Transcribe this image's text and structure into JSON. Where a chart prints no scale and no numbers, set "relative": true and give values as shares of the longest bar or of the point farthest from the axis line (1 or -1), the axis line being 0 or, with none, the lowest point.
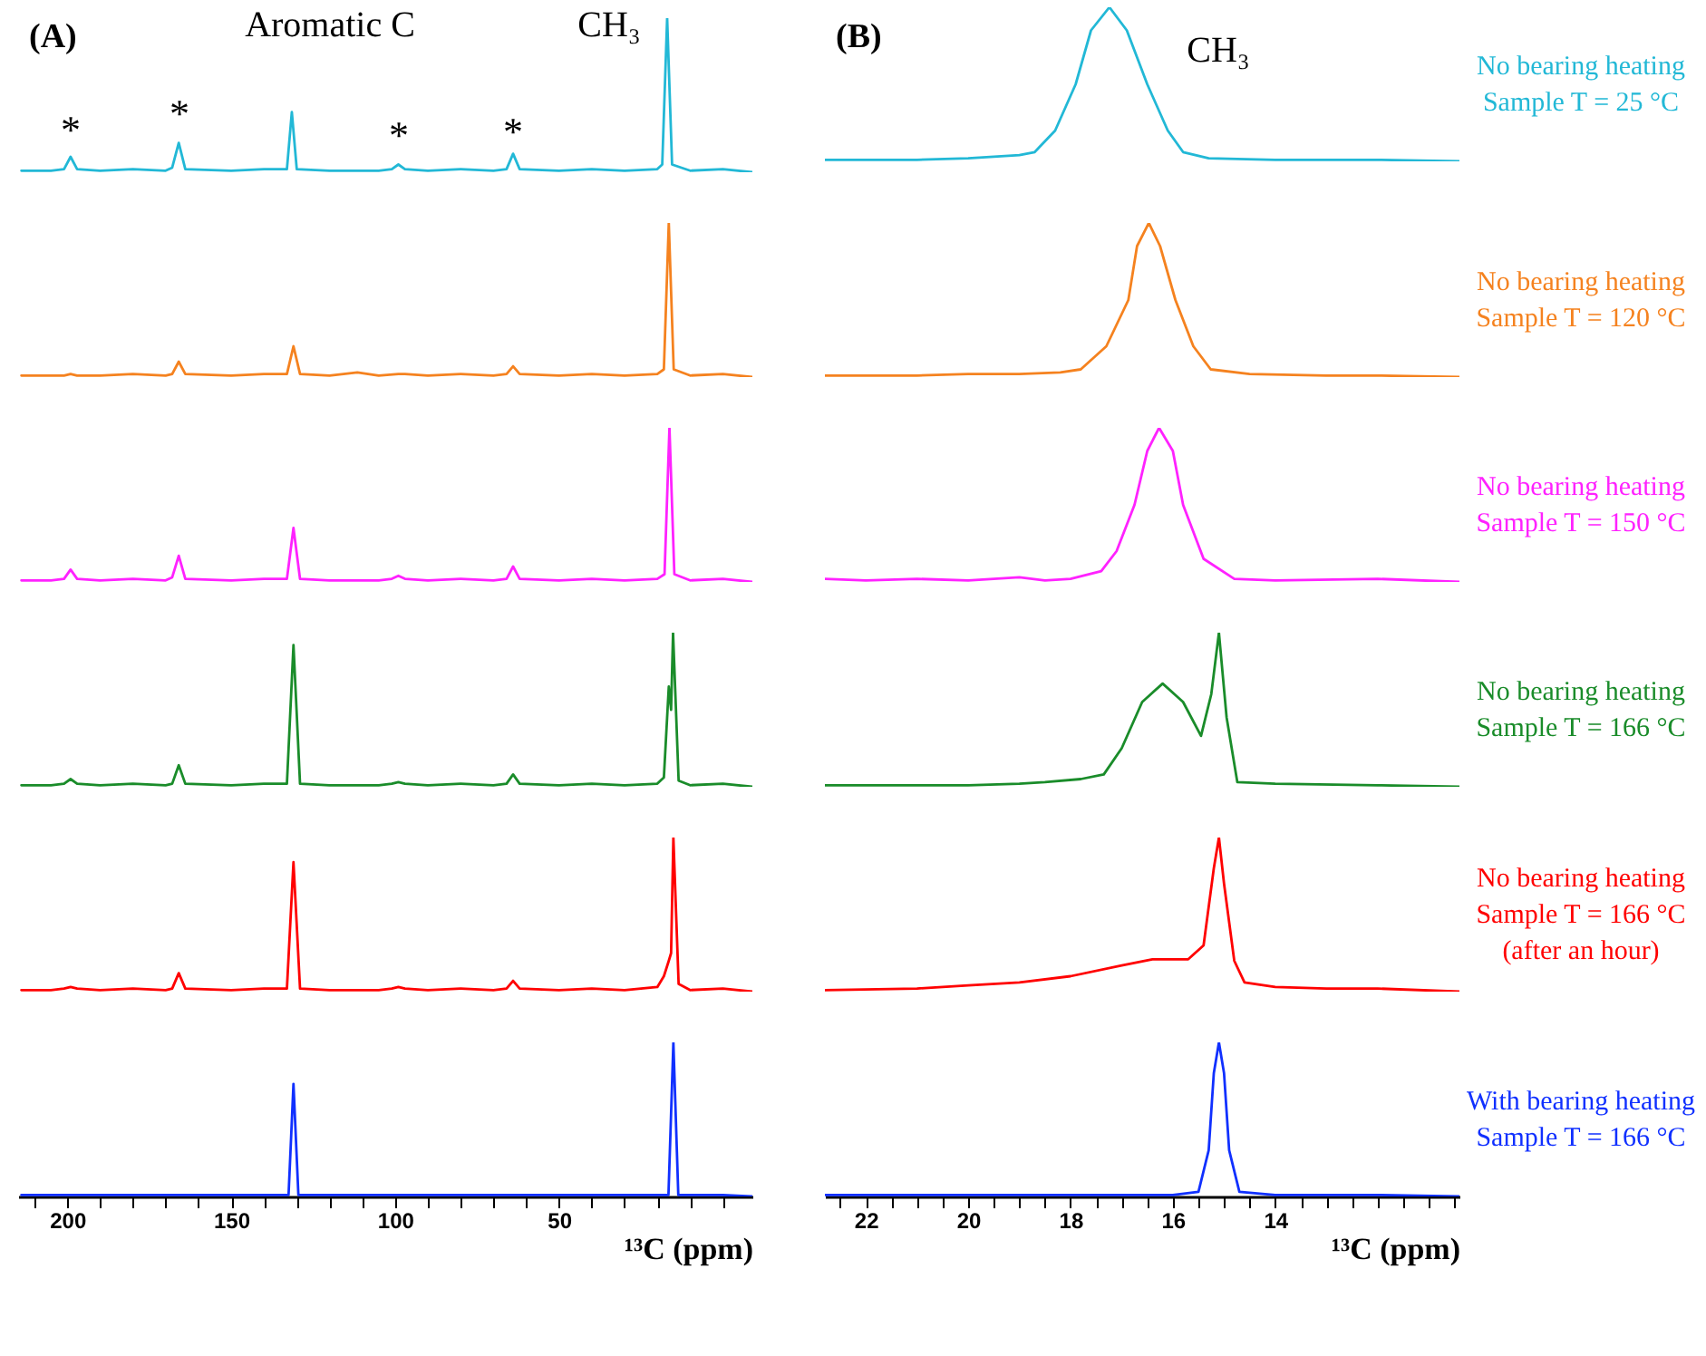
{
  "chart_data": [
    {
      "type": "line",
      "title": "(A)",
      "relative": true,
      "tick_labels": false,
      "xlim": [
        215,
        -9
      ],
      "x": [
        214,
        205,
        201,
        199,
        197,
        190,
        180,
        170,
        168,
        166,
        164,
        150,
        140,
        133,
        131.5,
        130,
        120,
        105,
        101,
        99,
        97,
        90,
        80,
        70,
        66,
        64,
        62,
        50,
        40,
        30,
        20,
        18.5,
        17,
        15.5,
        10,
        0,
        -9
      ],
      "series": [
        {
          "color": "#22b8d6",
          "values": [
            0.01,
            0.01,
            0.02,
            0.1,
            0.02,
            0.01,
            0.02,
            0.01,
            0.03,
            0.19,
            0.02,
            0.01,
            0.02,
            0.02,
            0.39,
            0.02,
            0.01,
            0.01,
            0.02,
            0.05,
            0.02,
            0.01,
            0.02,
            0.01,
            0.02,
            0.12,
            0.02,
            0.01,
            0.02,
            0.01,
            0.02,
            0.05,
            1,
            0.05,
            0.01,
            0.02,
            0
          ]
        }
      ],
      "annotations": [
        "Aromatic C",
        "CH₃",
        "*",
        "*",
        "*",
        "*"
      ]
    },
    {
      "type": "line",
      "title": "(B)",
      "relative": true,
      "tick_labels": false,
      "xlim": [
        22.8,
        10.4
      ],
      "x": [
        22.8,
        21,
        20,
        19,
        18.7,
        18.3,
        17.9,
        17.6,
        17.24,
        16.9,
        16.5,
        16.1,
        15.8,
        15.3,
        14,
        13,
        12,
        10.4
      ],
      "series": [
        {
          "color": "#22b8d6",
          "values": [
            0.01,
            0.01,
            0.02,
            0.04,
            0.06,
            0.2,
            0.5,
            0.85,
            1,
            0.85,
            0.5,
            0.2,
            0.06,
            0.02,
            0.01,
            0.01,
            0.01,
            0
          ]
        }
      ],
      "annotations": [
        "CH₃",
        "No bearing heating",
        "Sample T = 25 °C"
      ]
    },
    {
      "type": "line",
      "relative": true,
      "tick_labels": false,
      "xlim": [
        215,
        -9
      ],
      "x": [
        214,
        205,
        201,
        199,
        197,
        190,
        180,
        170,
        168,
        166,
        164,
        150,
        140,
        133,
        131,
        129,
        120,
        111.5,
        105,
        99,
        97,
        90,
        80,
        70,
        66,
        64,
        62,
        50,
        40,
        30,
        20,
        18,
        16.5,
        15,
        10,
        0,
        -9
      ],
      "series": [
        {
          "color": "#f5821f",
          "values": [
            0.01,
            0.01,
            0.01,
            0.02,
            0.01,
            0.01,
            0.02,
            0.01,
            0.02,
            0.1,
            0.02,
            0.01,
            0.02,
            0.02,
            0.2,
            0.02,
            0.01,
            0.03,
            0.01,
            0.02,
            0.02,
            0.01,
            0.02,
            0.01,
            0.02,
            0.07,
            0.02,
            0.01,
            0.02,
            0.01,
            0.02,
            0.05,
            1,
            0.05,
            0.01,
            0.02,
            0
          ]
        }
      ]
    },
    {
      "type": "line",
      "relative": true,
      "tick_labels": false,
      "xlim": [
        22.8,
        10.4
      ],
      "x": [
        22.8,
        21,
        20,
        19,
        18.2,
        17.8,
        17.3,
        16.87,
        16.7,
        16.47,
        16.25,
        15.95,
        15.6,
        15.26,
        14.5,
        13,
        12,
        10.4
      ],
      "series": [
        {
          "color": "#f5821f",
          "values": [
            0.01,
            0.01,
            0.02,
            0.02,
            0.03,
            0.05,
            0.2,
            0.5,
            0.85,
            1,
            0.85,
            0.5,
            0.2,
            0.05,
            0.02,
            0.01,
            0.01,
            0
          ]
        }
      ],
      "annotations": [
        "No bearing heating",
        "Sample T = 120 °C"
      ]
    },
    {
      "type": "line",
      "relative": true,
      "tick_labels": false,
      "xlim": [
        215,
        -9
      ],
      "x": [
        214,
        205,
        201,
        199,
        197,
        190,
        180,
        170,
        168,
        166,
        164,
        150,
        140,
        133,
        131,
        129,
        120,
        105,
        101,
        99,
        97,
        90,
        80,
        70,
        66,
        64,
        62,
        50,
        40,
        30,
        20,
        17.8,
        16.3,
        14.8,
        10,
        0,
        -9
      ],
      "series": [
        {
          "color": "#ff22ff",
          "values": [
            0.01,
            0.01,
            0.02,
            0.08,
            0.02,
            0.01,
            0.02,
            0.01,
            0.03,
            0.17,
            0.02,
            0.01,
            0.02,
            0.02,
            0.35,
            0.02,
            0.01,
            0.01,
            0.02,
            0.04,
            0.02,
            0.01,
            0.02,
            0.01,
            0.02,
            0.1,
            0.02,
            0.01,
            0.02,
            0.01,
            0.02,
            0.05,
            1,
            0.05,
            0.01,
            0.02,
            0
          ]
        }
      ]
    },
    {
      "type": "line",
      "relative": true,
      "tick_labels": false,
      "xlim": [
        22.8,
        10.4
      ],
      "x": [
        22.8,
        22,
        21,
        20,
        19,
        18.5,
        18,
        17.4,
        17.1,
        16.75,
        16.5,
        16.27,
        16,
        15.8,
        15.4,
        14.8,
        14,
        12,
        10.4
      ],
      "series": [
        {
          "color": "#ff22ff",
          "values": [
            0.02,
            0.01,
            0.02,
            0.01,
            0.03,
            0.01,
            0.02,
            0.07,
            0.2,
            0.5,
            0.85,
            1,
            0.85,
            0.5,
            0.15,
            0.02,
            0.01,
            0.02,
            0
          ]
        }
      ],
      "annotations": [
        "No bearing heating",
        "Sample T = 150 °C"
      ]
    },
    {
      "type": "line",
      "relative": true,
      "tick_labels": false,
      "xlim": [
        215,
        -9
      ],
      "x": [
        214,
        205,
        201,
        199,
        197,
        190,
        180,
        170,
        168,
        166,
        164,
        150,
        140,
        133,
        131,
        129,
        120,
        105,
        101,
        99,
        97,
        90,
        80,
        70,
        66,
        64,
        62,
        50,
        40,
        30,
        20,
        18,
        16.5,
        15.8,
        15.2,
        13.5,
        10,
        0,
        -9
      ],
      "series": [
        {
          "color": "#1a8c2a",
          "values": [
            0.01,
            0.01,
            0.02,
            0.05,
            0.02,
            0.01,
            0.02,
            0.01,
            0.02,
            0.14,
            0.02,
            0.01,
            0.02,
            0.02,
            0.92,
            0.02,
            0.01,
            0.01,
            0.02,
            0.03,
            0.02,
            0.01,
            0.02,
            0.01,
            0.02,
            0.08,
            0.02,
            0.01,
            0.02,
            0.01,
            0.02,
            0.06,
            0.65,
            0.5,
            1,
            0.04,
            0.01,
            0.02,
            0
          ]
        }
      ]
    },
    {
      "type": "line",
      "relative": true,
      "tick_labels": false,
      "xlim": [
        22.8,
        10.4
      ],
      "x": [
        22.8,
        21,
        20,
        19,
        18.5,
        17.8,
        17.35,
        17,
        16.6,
        16.2,
        15.8,
        15.45,
        15.25,
        15.1,
        14.95,
        14.74,
        14,
        12,
        10.4
      ],
      "series": [
        {
          "color": "#1a8c2a",
          "values": [
            0.01,
            0.01,
            0.01,
            0.02,
            0.03,
            0.05,
            0.08,
            0.25,
            0.55,
            0.67,
            0.55,
            0.33,
            0.6,
            1,
            0.45,
            0.03,
            0.02,
            0.01,
            0
          ]
        }
      ],
      "annotations": [
        "No bearing heating",
        "Sample T = 166 °C"
      ]
    },
    {
      "type": "line",
      "relative": true,
      "tick_labels": false,
      "xlim": [
        215,
        -9
      ],
      "x": [
        214,
        205,
        201,
        199,
        197,
        190,
        180,
        170,
        168,
        166,
        164,
        150,
        140,
        133,
        131,
        129,
        120,
        105,
        101,
        99,
        97,
        90,
        80,
        70,
        66,
        64,
        62,
        50,
        40,
        30,
        20,
        18,
        16.5,
        15.8,
        15.1,
        13.5,
        10,
        0,
        -9
      ],
      "series": [
        {
          "color": "#ff0000",
          "values": [
            0.01,
            0.01,
            0.02,
            0.03,
            0.02,
            0.01,
            0.02,
            0.01,
            0.02,
            0.12,
            0.02,
            0.01,
            0.02,
            0.02,
            0.84,
            0.02,
            0.01,
            0.01,
            0.02,
            0.03,
            0.02,
            0.01,
            0.02,
            0.01,
            0.02,
            0.07,
            0.02,
            0.01,
            0.02,
            0.01,
            0.03,
            0.1,
            0.2,
            0.25,
            1,
            0.05,
            0.01,
            0.02,
            0
          ]
        }
      ]
    },
    {
      "type": "line",
      "relative": true,
      "tick_labels": false,
      "xlim": [
        22.8,
        10.4
      ],
      "x": [
        22.8,
        21,
        20,
        19,
        18,
        17,
        16.4,
        15.7,
        15.4,
        15.2,
        15.1,
        15,
        14.8,
        14.6,
        14,
        13,
        12,
        10.4
      ],
      "series": [
        {
          "color": "#ff0000",
          "values": [
            0.01,
            0.02,
            0.04,
            0.06,
            0.1,
            0.17,
            0.21,
            0.21,
            0.3,
            0.8,
            1,
            0.7,
            0.2,
            0.06,
            0.03,
            0.02,
            0.02,
            0
          ]
        }
      ],
      "annotations": [
        "No bearing heating",
        "Sample T = 166 °C",
        "(after an hour)"
      ]
    },
    {
      "type": "line",
      "relative": true,
      "tick_labels": "x",
      "xlabel": "¹³C (ppm)",
      "xlim": [
        215,
        -9
      ],
      "xticks": [
        {
          "value": 210,
          "label": null
        },
        200,
        {
          "value": 190,
          "label": null
        },
        {
          "value": 180,
          "label": null
        },
        {
          "value": 170,
          "label": null
        },
        {
          "value": 160,
          "label": null
        },
        150,
        {
          "value": 140,
          "label": null
        },
        {
          "value": 130,
          "label": null
        },
        {
          "value": 120,
          "label": null
        },
        {
          "value": 110,
          "label": null
        },
        100,
        {
          "value": 90,
          "label": null
        },
        {
          "value": 80,
          "label": null
        },
        {
          "value": 70,
          "label": null
        },
        {
          "value": 60,
          "label": null
        },
        50,
        {
          "value": 40,
          "label": null
        },
        {
          "value": 30,
          "label": null
        },
        {
          "value": 20,
          "label": null
        },
        {
          "value": 10,
          "label": null
        },
        {
          "value": 0,
          "label": null
        }
      ],
      "x": [
        214,
        180,
        140,
        132.5,
        131,
        129.5,
        100,
        60,
        20,
        16.6,
        15.1,
        13.6,
        10,
        0,
        -9
      ],
      "series": [
        {
          "color": "#1030ff",
          "values": [
            0.01,
            0.01,
            0.01,
            0.01,
            0.73,
            0.01,
            0.01,
            0.01,
            0.01,
            0.01,
            1,
            0.01,
            0.01,
            0.01,
            0
          ]
        }
      ]
    },
    {
      "type": "line",
      "relative": true,
      "tick_labels": "x",
      "xlabel": "¹³C (ppm)",
      "xlim": [
        22.8,
        10.4
      ],
      "xticks": [
        {
          "value": 22.5,
          "label": null
        },
        22,
        {
          "value": 21.5,
          "label": null
        },
        {
          "value": 21,
          "label": null
        },
        {
          "value": 20.5,
          "label": null
        },
        20,
        {
          "value": 19.5,
          "label": null
        },
        {
          "value": 19,
          "label": null
        },
        {
          "value": 18.5,
          "label": null
        },
        18,
        {
          "value": 17.5,
          "label": null
        },
        {
          "value": 17,
          "label": null
        },
        {
          "value": 16.5,
          "label": null
        },
        16,
        {
          "value": 15.5,
          "label": null
        },
        {
          "value": 15,
          "label": null
        },
        {
          "value": 14.5,
          "label": null
        },
        14,
        {
          "value": 13.5,
          "label": null
        },
        {
          "value": 13,
          "label": null
        },
        {
          "value": 12.5,
          "label": null
        },
        {
          "value": 12,
          "label": null
        },
        {
          "value": 11.5,
          "label": null
        },
        {
          "value": 11,
          "label": null
        },
        {
          "value": 10.5,
          "label": null
        }
      ],
      "x": [
        22.8,
        20,
        18,
        16,
        15.5,
        15.3,
        15.2,
        15.1,
        15,
        14.9,
        14.7,
        14,
        12,
        10.4
      ],
      "series": [
        {
          "color": "#1030ff",
          "values": [
            0.01,
            0.01,
            0.01,
            0.01,
            0.03,
            0.3,
            0.8,
            1,
            0.8,
            0.3,
            0.03,
            0.01,
            0.01,
            0
          ]
        }
      ],
      "annotations": [
        "With bearing heating",
        "Sample T = 166 °C"
      ]
    }
  ]
}
